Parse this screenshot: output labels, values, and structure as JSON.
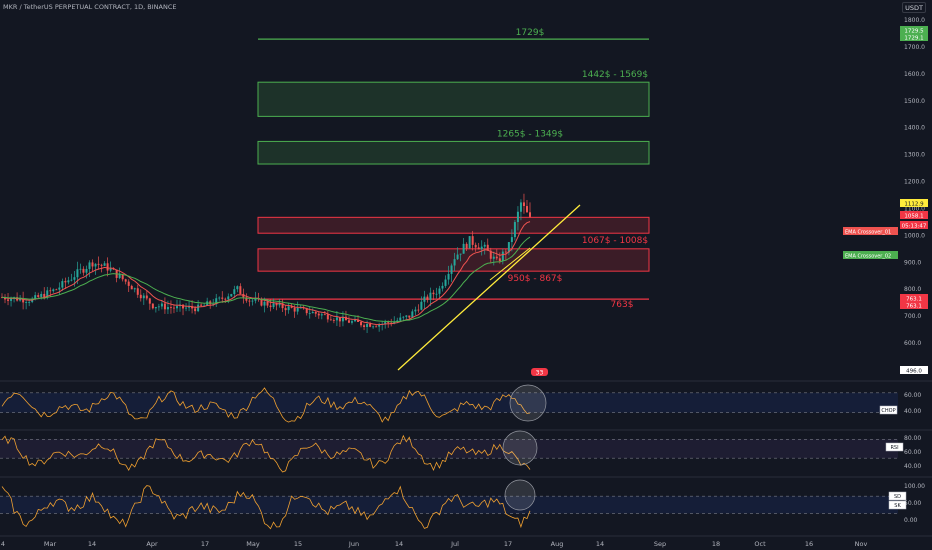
{
  "header": {
    "title": "MKR / TetherUS PERPETUAL CONTRACT, 1D, BINANCE"
  },
  "price_scale": {
    "currency": "USDT"
  },
  "colors": {
    "background": "#131722",
    "bull": "#26a69a",
    "bear": "#ef5350",
    "support_zone": "#f23645",
    "resistance_zone": "#4caf50",
    "trendline": "#ffeb3b",
    "oscillator": "#f0a030"
  },
  "chart_data": [
    {
      "type": "candlestick",
      "title": "MKR / TetherUS PERPETUAL CONTRACT, 1D, BINANCE",
      "ylim": [
        496,
        1800
      ],
      "y_ticks": [
        600,
        700,
        800,
        900,
        1000,
        1100,
        1200,
        1300,
        1400,
        1500,
        1600,
        1700,
        1800
      ],
      "x_ticks": [
        "4",
        "Mar",
        "14",
        "Apr",
        "17",
        "May",
        "15",
        "Jun",
        "14",
        "Jul",
        "17",
        "Aug",
        "14",
        "Sep",
        "18",
        "Oct",
        "16",
        "Nov"
      ],
      "price_labels": [
        {
          "text": "1729.5",
          "kind": "green"
        },
        {
          "text": "1729.1",
          "kind": "green"
        },
        {
          "text": "1112.9",
          "kind": "yellow"
        },
        {
          "text": "1058.1",
          "kind": "red"
        },
        {
          "text": "05:13:47",
          "kind": "red"
        },
        {
          "text": "763.1",
          "kind": "red"
        },
        {
          "text": "763.1",
          "kind": "red"
        },
        {
          "text": "496.0",
          "kind": "white"
        }
      ],
      "series": [
        {
          "name": "EMA Crossover_01",
          "color": "#ef5350"
        },
        {
          "name": "EMA Crossover_02",
          "color": "#4caf50"
        }
      ],
      "annotations": [
        {
          "kind": "line",
          "text": "1729$",
          "y": 1729,
          "color": "#4caf50"
        },
        {
          "kind": "zone",
          "text": "1442$ - 1569$",
          "y1": 1442,
          "y2": 1569,
          "color": "#4caf50"
        },
        {
          "kind": "zone",
          "text": "1265$ - 1349$",
          "y1": 1265,
          "y2": 1349,
          "color": "#4caf50"
        },
        {
          "kind": "zone",
          "text": "1067$ - 1008$",
          "y1": 1008,
          "y2": 1067,
          "color": "#f23645"
        },
        {
          "kind": "zone",
          "text": "950$ - 867$",
          "y1": 867,
          "y2": 950,
          "color": "#f23645"
        },
        {
          "kind": "line",
          "text": "763$",
          "y": 763,
          "color": "#f23645"
        }
      ],
      "badge": "33"
    },
    {
      "type": "line",
      "name": "CHOP",
      "ticks": [
        "60.00",
        "40.00"
      ],
      "ylim": [
        20,
        80
      ]
    },
    {
      "type": "line",
      "name": "RSI",
      "ticks": [
        "80.00",
        "60.00",
        "40.00"
      ],
      "ylim": [
        20,
        90
      ]
    },
    {
      "type": "line",
      "name": "SK",
      "ticks": [
        "100.00",
        "50.00",
        "0.00"
      ],
      "ylim": [
        -10,
        110
      ],
      "badges": [
        "SD",
        "SK"
      ]
    }
  ]
}
